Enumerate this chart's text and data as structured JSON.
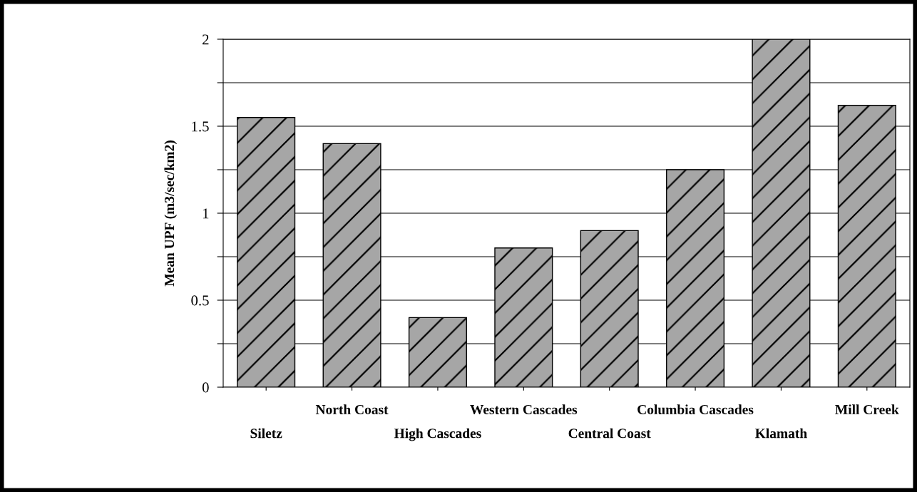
{
  "chart_data": {
    "type": "bar",
    "ylabel": "Mean UPF (m3/sec/km2)",
    "categories": [
      "Siletz",
      "North Coast",
      "High Cascades",
      "Western Cascades",
      "Central Coast",
      "Columbia Cascades",
      "Klamath",
      "Mill Creek"
    ],
    "values": [
      1.55,
      1.4,
      0.4,
      0.8,
      0.9,
      1.25,
      2.0,
      1.62
    ],
    "color": "#a6a6a6",
    "ylim": [
      0,
      2
    ],
    "yticks": [
      0,
      {
        "value": 0.25,
        "label": null
      },
      0.5,
      {
        "value": 0.75,
        "label": null
      },
      1,
      {
        "value": 1.25,
        "label": null
      },
      1.5,
      {
        "value": 1.75,
        "label": null
      },
      2
    ],
    "grid": "y",
    "legend": false
  }
}
